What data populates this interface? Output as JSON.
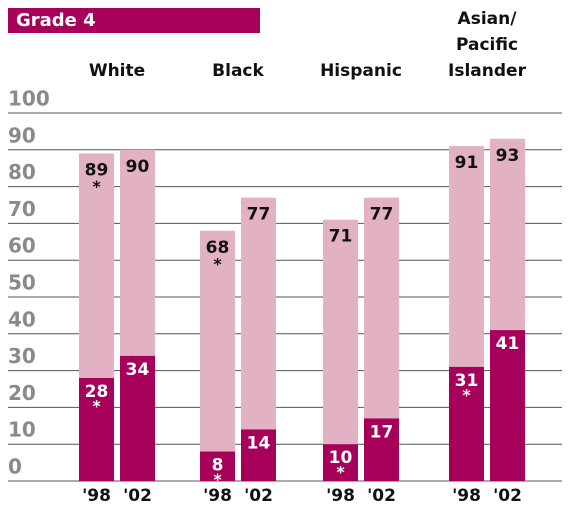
{
  "chart_data": {
    "type": "bar",
    "title": "Grade 4",
    "groups": [
      "White",
      "Black",
      "Hispanic",
      "Asian/ Pacific Islander"
    ],
    "years": [
      "'98",
      "'02"
    ],
    "series": [
      {
        "color": "#e2b1c3",
        "values": [
          89,
          90,
          68,
          77,
          71,
          77,
          91,
          93
        ],
        "annotations": [
          "*",
          null,
          "*",
          null,
          null,
          null,
          null,
          null
        ]
      },
      {
        "color": "#a6005b",
        "values": [
          28,
          34,
          8,
          14,
          10,
          17,
          31,
          41
        ],
        "annotations": [
          "*",
          null,
          "*",
          null,
          "*",
          null,
          "*",
          null
        ]
      }
    ],
    "ylim": [
      0,
      100
    ],
    "yticks": [
      0,
      10,
      20,
      30,
      40,
      50,
      60,
      70,
      80,
      90,
      100
    ],
    "grid": true
  }
}
